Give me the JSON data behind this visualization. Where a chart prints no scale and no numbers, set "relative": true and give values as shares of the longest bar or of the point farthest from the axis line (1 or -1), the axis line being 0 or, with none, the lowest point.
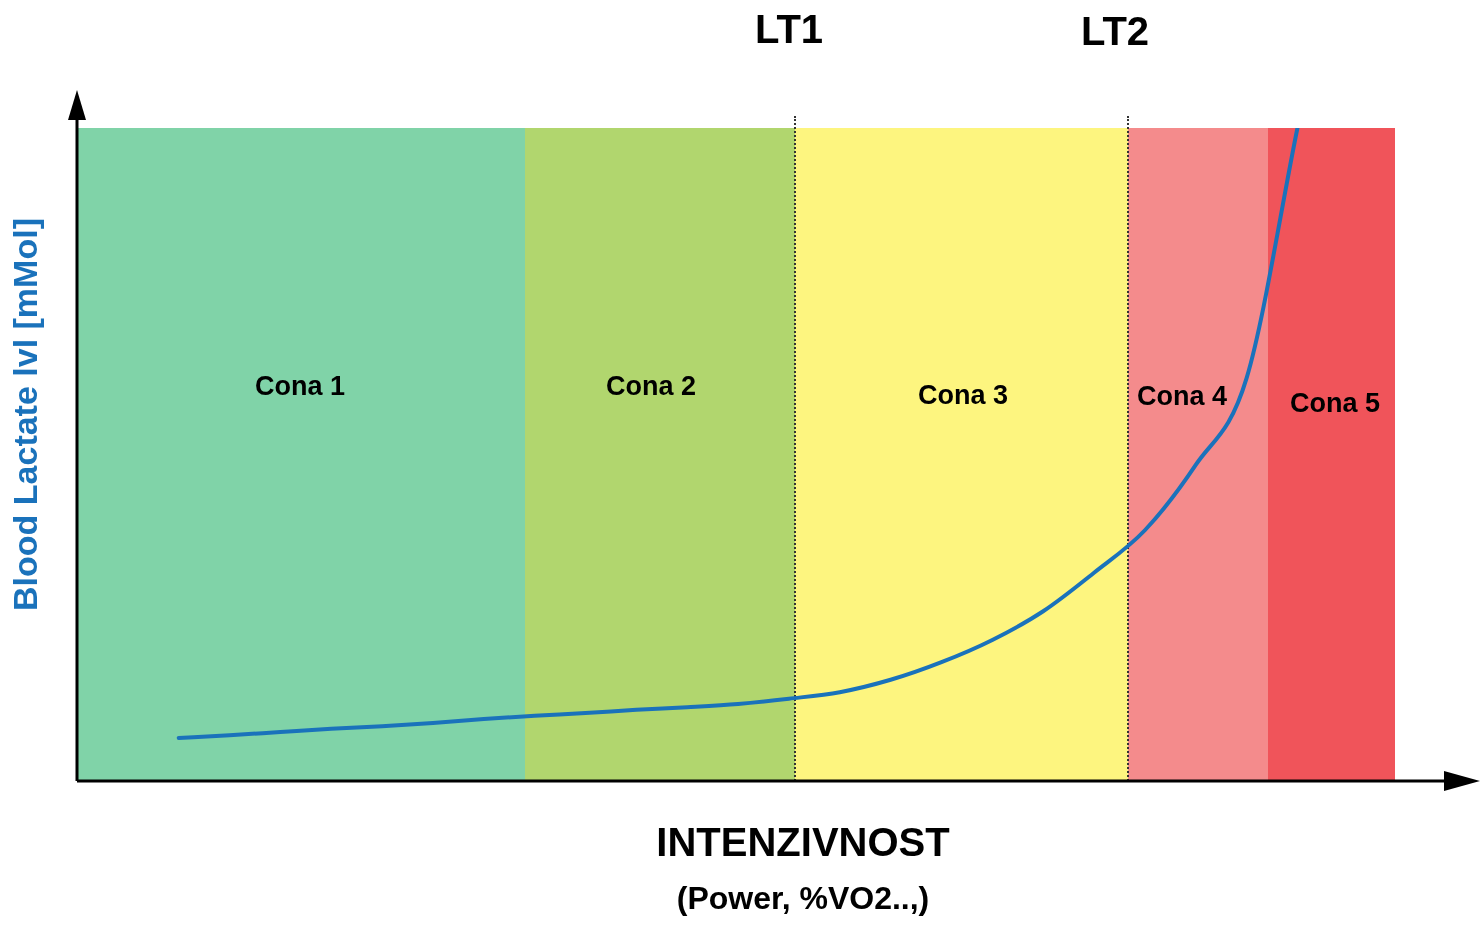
{
  "chart_data": {
    "type": "line",
    "relative": true,
    "marker": "none",
    "line_style": "solid",
    "xlabel": "INTENZIVNOST",
    "ylabel": "Blood Lactate lvl [mMol]",
    "annotations": [
      "Cona 1",
      "Cona 2",
      "Cona 3",
      "Cona 4",
      "Cona 5",
      "LT1",
      "LT2",
      "(Power, %VO2..,)"
    ],
    "categories": [
      null,
      null,
      null,
      null,
      null,
      null,
      null,
      null,
      null,
      null,
      null,
      null,
      null,
      null,
      null,
      null,
      null,
      null,
      null,
      null,
      null,
      null,
      null,
      null,
      null,
      null,
      null,
      null
    ],
    "series": [
      {
        "color": "#1a72bb",
        "values": [
          null,
          null,
          0.066,
          0.07,
          0.075,
          0.08,
          0.084,
          0.089,
          0.095,
          0.1,
          0.104,
          0.109,
          0.113,
          0.118,
          0.126,
          0.136,
          0.155,
          0.182,
          0.216,
          0.26,
          0.319,
          0.384,
          0.484,
          0.617,
          1,
          null,
          null,
          null
        ]
      }
    ]
  }
}
